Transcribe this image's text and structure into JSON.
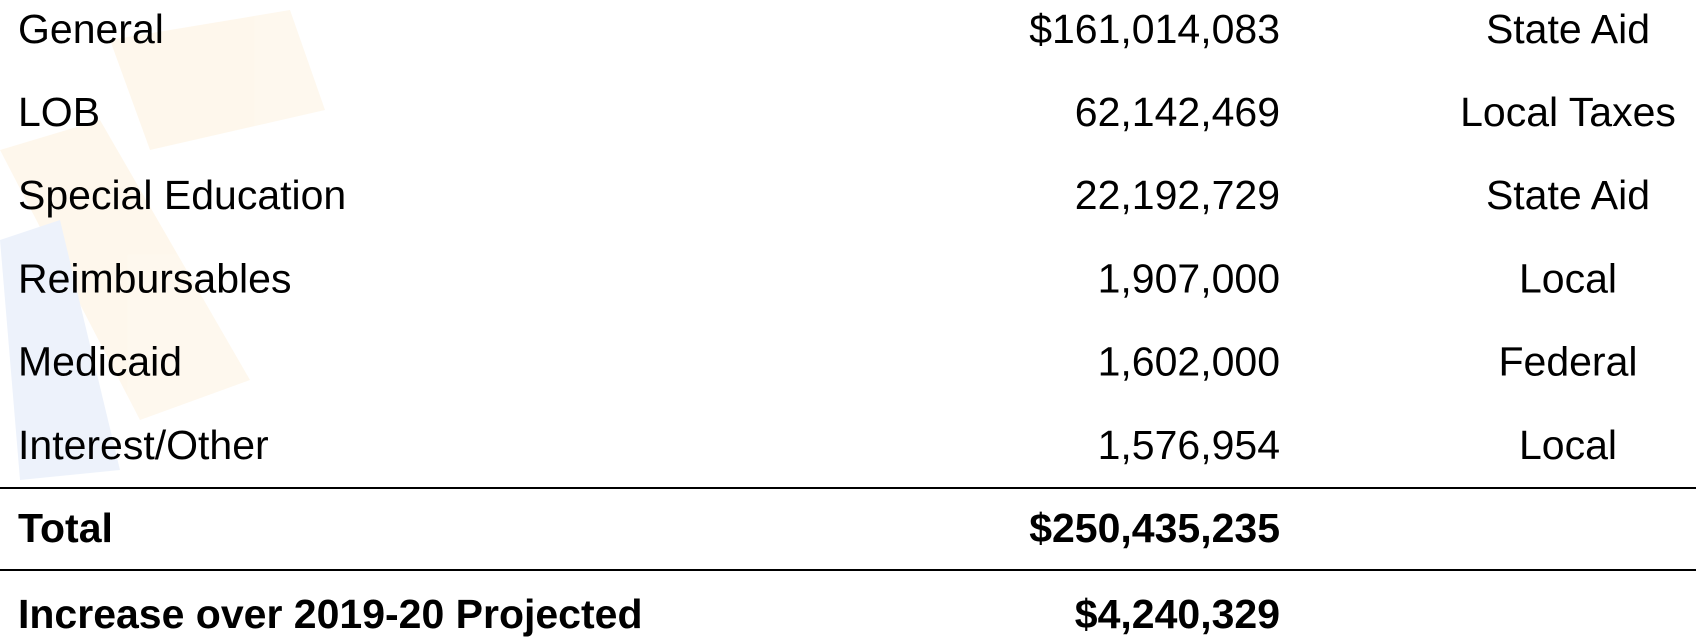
{
  "table": {
    "rows": [
      [
        "General",
        "$161,014,083",
        "State Aid"
      ],
      [
        "LOB",
        "62,142,469",
        "Local Taxes"
      ],
      [
        "Special Education",
        "22,192,729",
        "State Aid"
      ],
      [
        "Reimbursables",
        "1,907,000",
        "Local"
      ],
      [
        "Medicaid",
        "1,602,000",
        "Federal"
      ],
      [
        "Interest/Other",
        "1,576,954",
        "Local"
      ]
    ],
    "total": [
      "Total",
      "$250,435,235"
    ],
    "increase": [
      "Increase over 2019-20 Projected",
      "$4,240,329"
    ]
  }
}
